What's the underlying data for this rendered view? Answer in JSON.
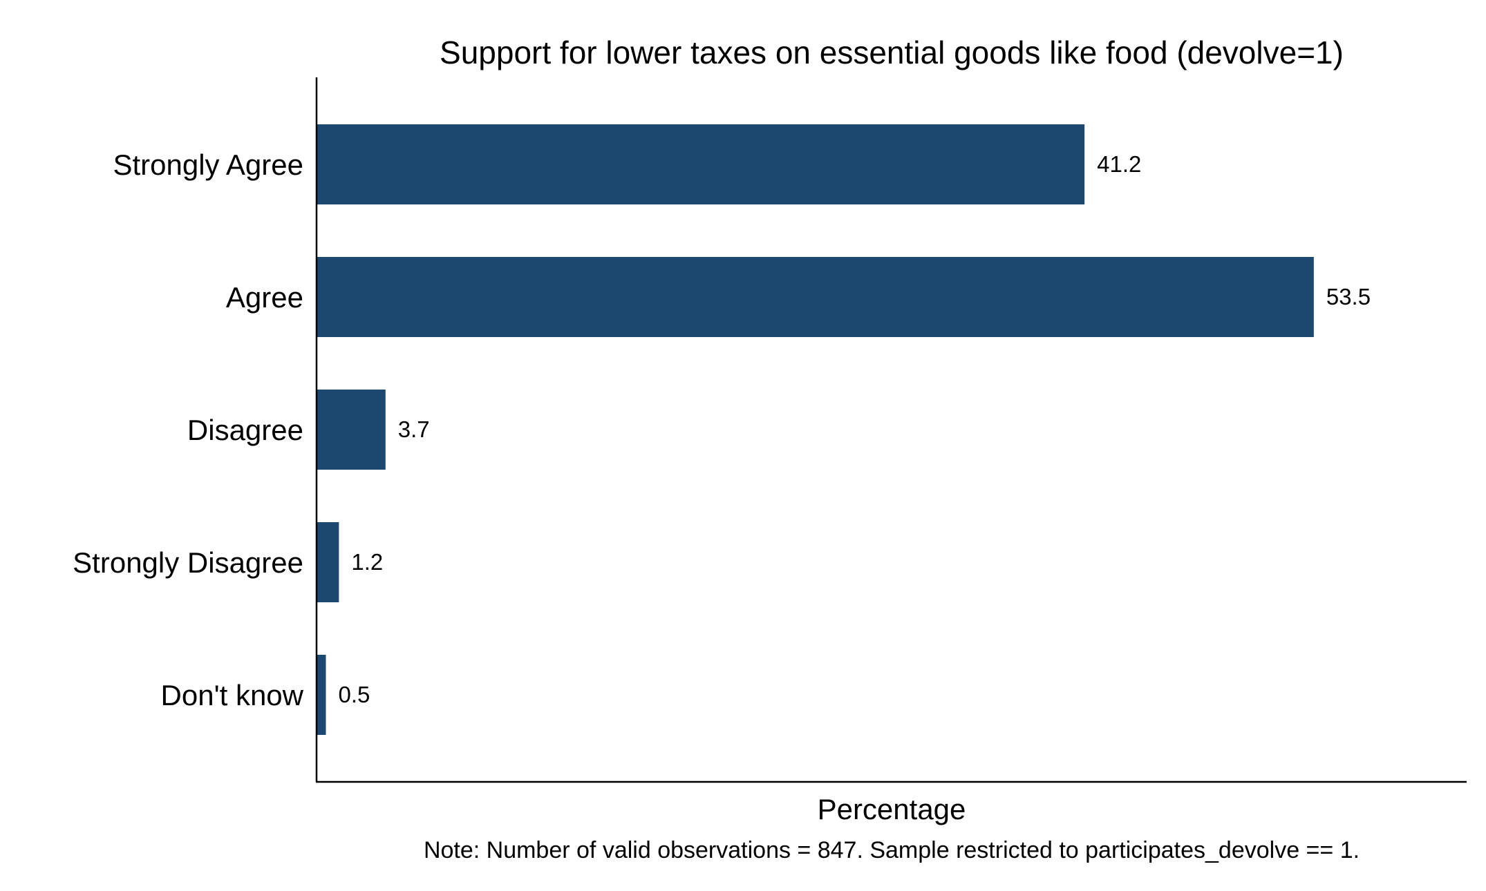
{
  "chart_data": {
    "type": "bar",
    "orientation": "horizontal",
    "title": "Support for lower taxes on essential goods like food (devolve=1)",
    "xlabel": "Percentage",
    "ylabel": "",
    "categories": [
      "Strongly Agree",
      "Agree",
      "Disagree",
      "Strongly Disagree",
      "Don't know"
    ],
    "values": [
      41.2,
      53.5,
      3.7,
      1.2,
      0.5
    ],
    "data_labels": [
      "41.2",
      "53.5",
      "3.7",
      "1.2",
      "0.5"
    ],
    "xlim": [
      0,
      61.7
    ],
    "grid": false,
    "legend": "none",
    "note": "Note: Number of valid observations = 847. Sample restricted to participates_devolve == 1.",
    "bar_color": "#1d4870"
  }
}
